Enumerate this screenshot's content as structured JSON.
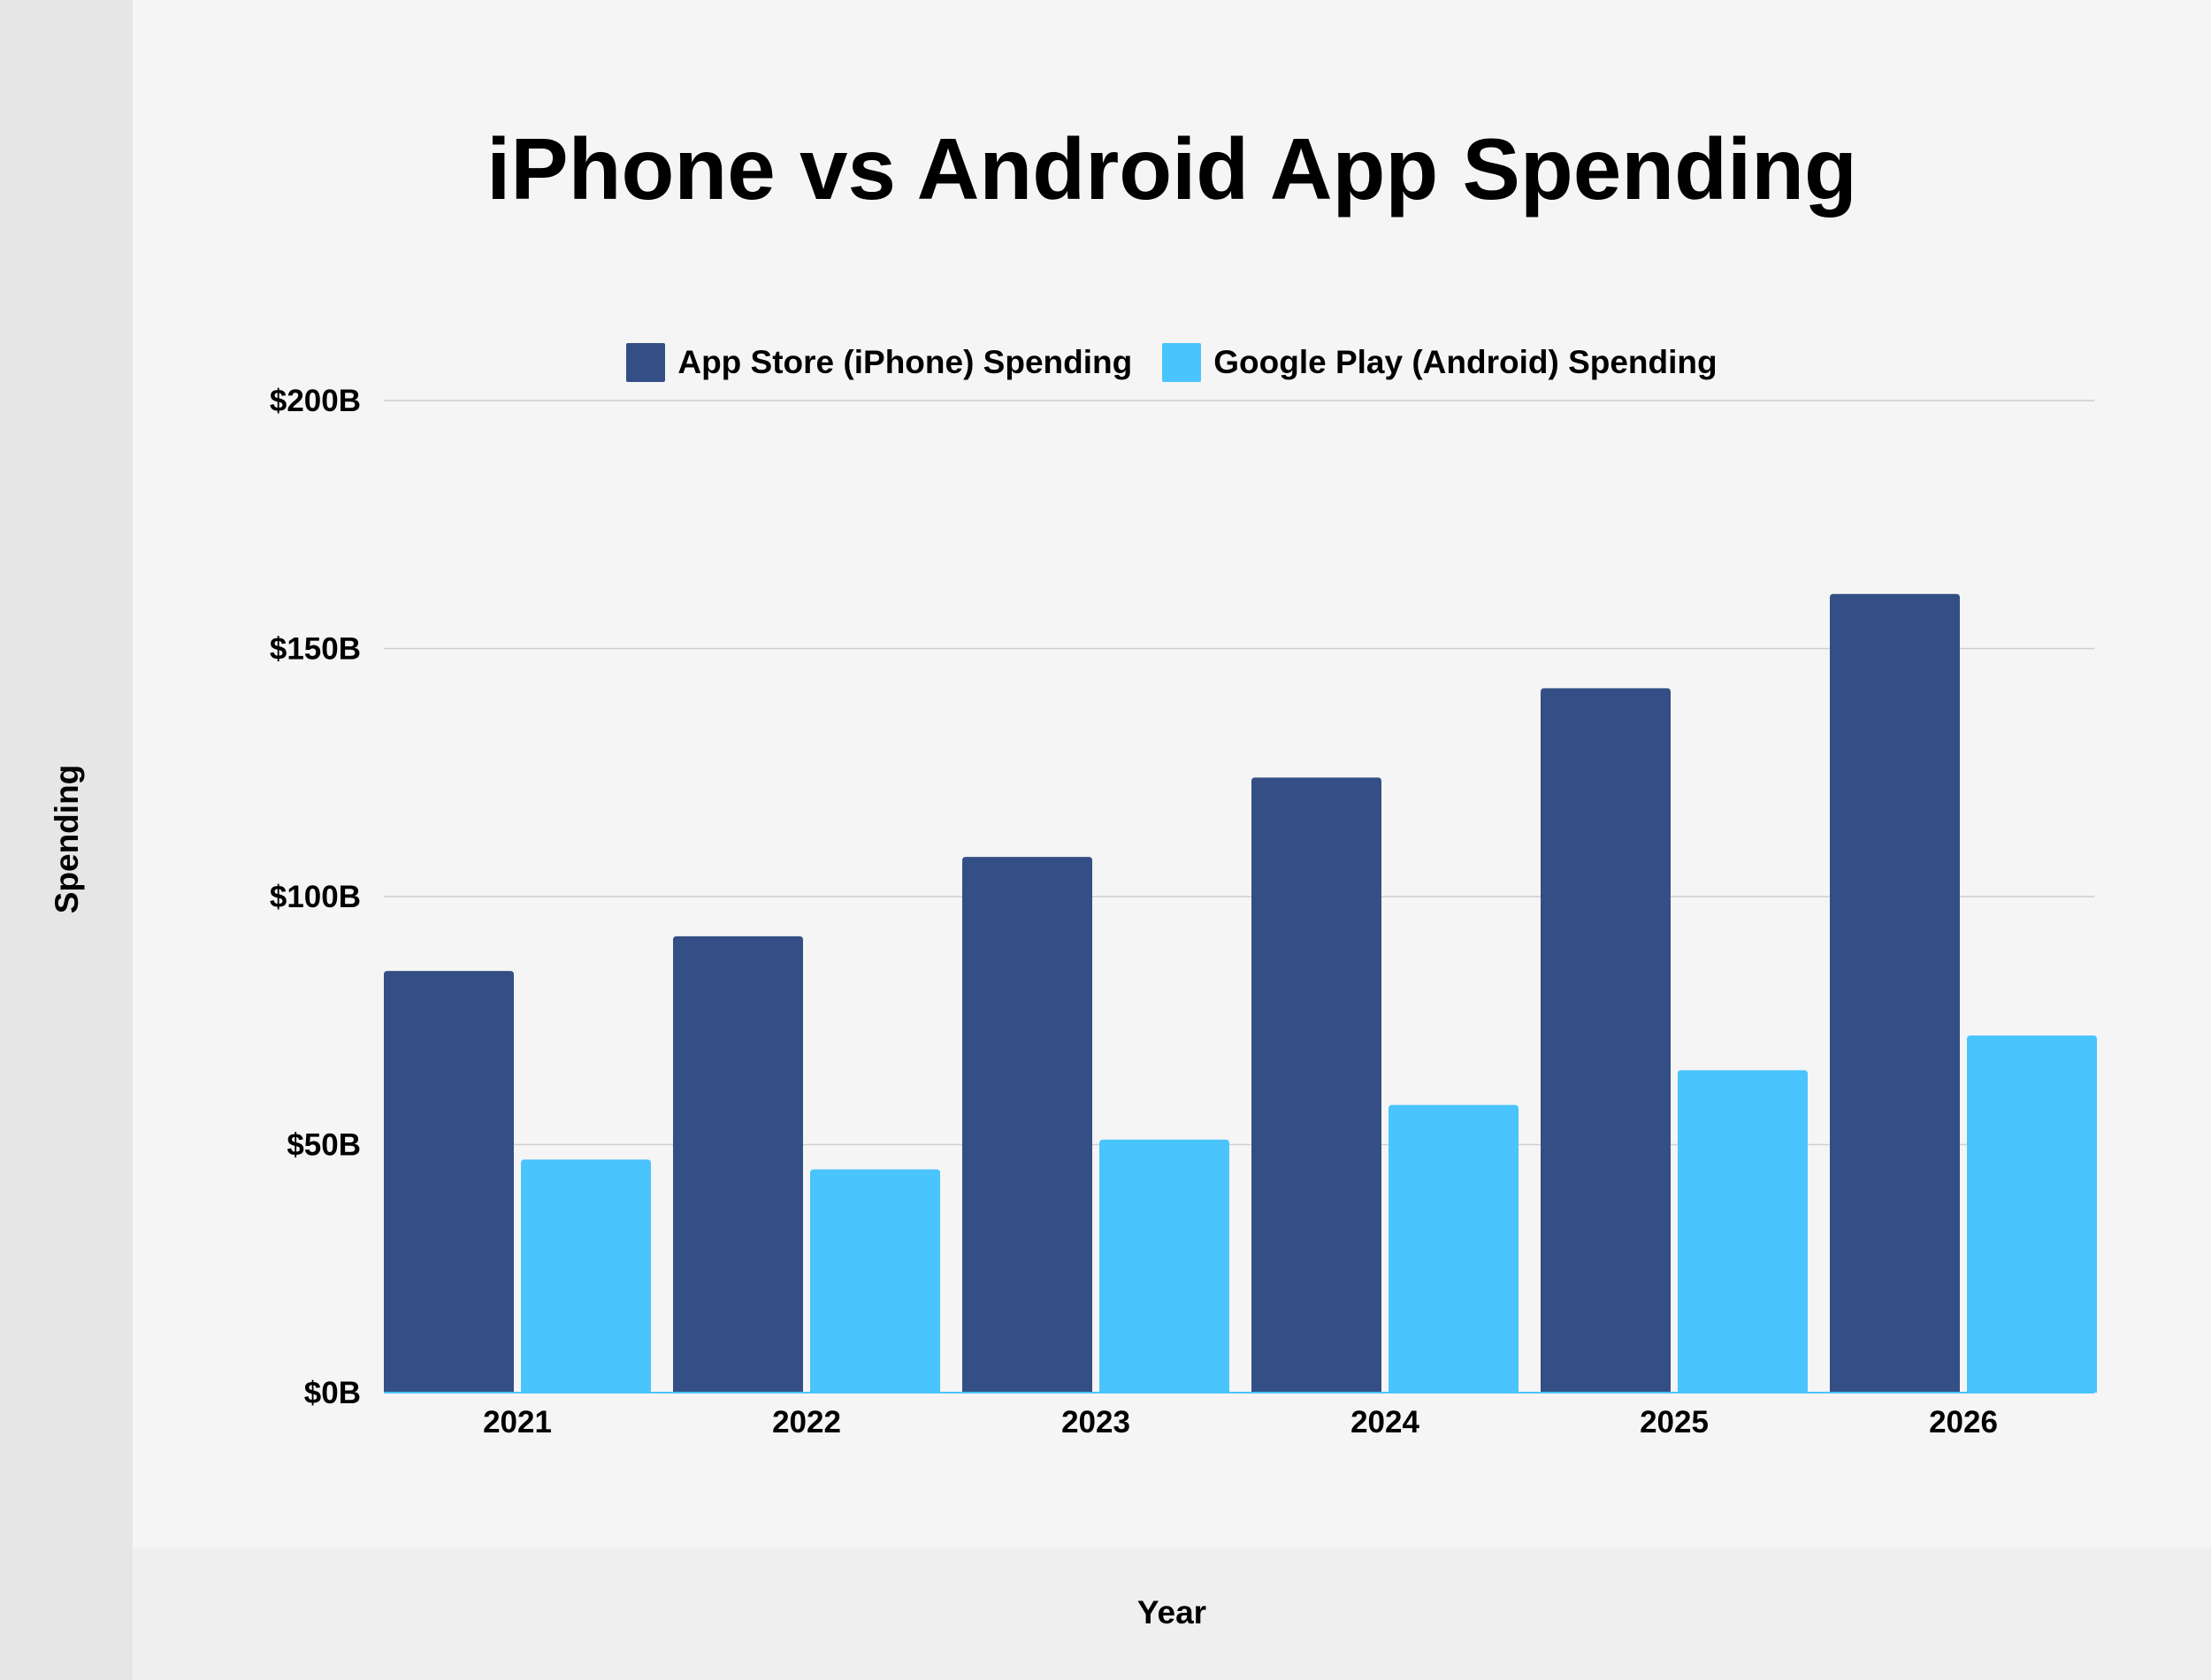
{
  "chart_data": {
    "type": "bar",
    "title": "iPhone vs Android App Spending",
    "xlabel": "Year",
    "ylabel": "Spending",
    "categories": [
      "2021",
      "2022",
      "2023",
      "2024",
      "2025",
      "2026"
    ],
    "series": [
      {
        "name": "App Store (iPhone) Spending",
        "color": "#344f85",
        "values": [
          85,
          92,
          108,
          124,
          142,
          161
        ]
      },
      {
        "name": "Google Play (Android) Spending",
        "color": "#4ac4fc",
        "values": [
          47,
          45,
          51,
          58,
          65,
          72
        ]
      }
    ],
    "ylim": [
      0,
      200
    ],
    "yticks": [
      0,
      50,
      100,
      150,
      200
    ],
    "ytick_labels": [
      "$0B",
      "$50B",
      "$100B",
      "$150B",
      "$200B"
    ],
    "grid": true,
    "legend_position": "top-center"
  }
}
